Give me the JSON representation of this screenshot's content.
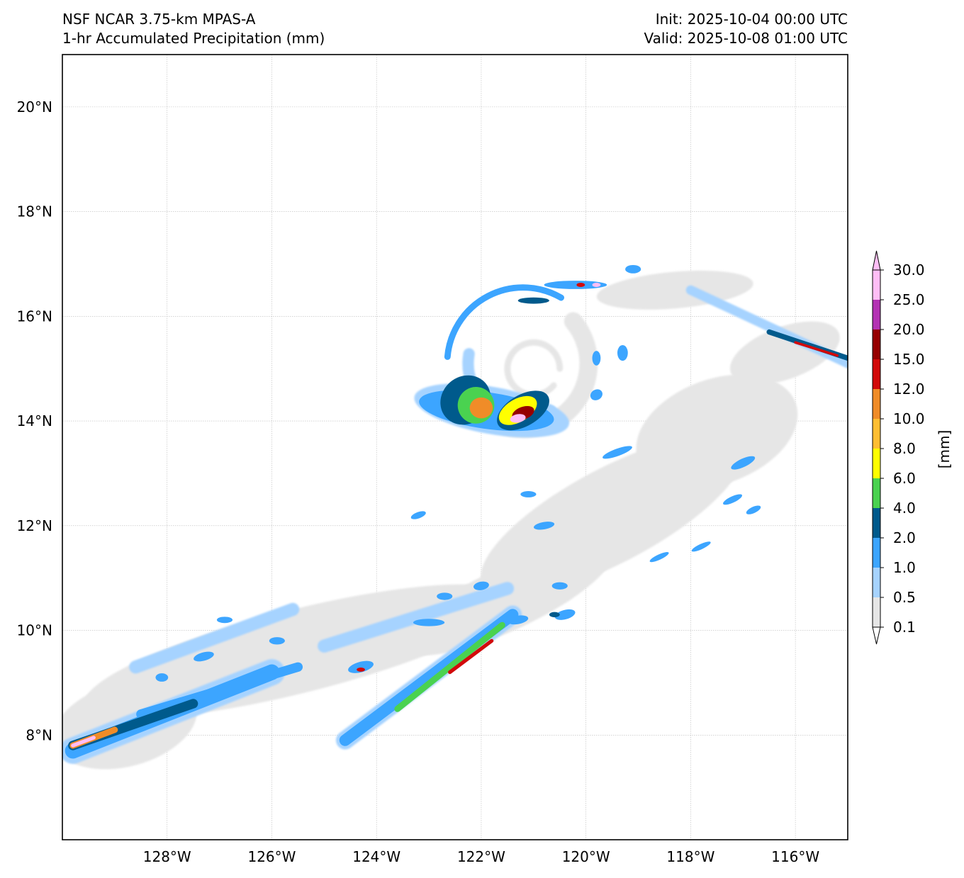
{
  "title": {
    "line1": "NSF NCAR 3.75-km MPAS-A",
    "line2": "1-hr Accumulated Precipitation (mm)",
    "init": "Init: 2025-10-04 00:00 UTC",
    "valid": "Valid: 2025-10-08 01:00 UTC"
  },
  "map": {
    "lon_range": [
      -130,
      -115
    ],
    "lat_range": [
      6,
      21
    ],
    "lat_ticks": [
      {
        "value": 20,
        "label": "20°N"
      },
      {
        "value": 18,
        "label": "18°N"
      },
      {
        "value": 16,
        "label": "16°N"
      },
      {
        "value": 14,
        "label": "14°N"
      },
      {
        "value": 12,
        "label": "12°N"
      },
      {
        "value": 10,
        "label": "10°N"
      },
      {
        "value": 8,
        "label": "8°N"
      }
    ],
    "lon_ticks": [
      {
        "value": -128,
        "label": "128°W"
      },
      {
        "value": -126,
        "label": "126°W"
      },
      {
        "value": -124,
        "label": "124°W"
      },
      {
        "value": -122,
        "label": "122°W"
      },
      {
        "value": -120,
        "label": "120°W"
      },
      {
        "value": -118,
        "label": "118°W"
      },
      {
        "value": -116,
        "label": "116°W"
      }
    ],
    "gridlines": true
  },
  "colorbar": {
    "label": "[mm]",
    "levels": [
      "0.1",
      "0.5",
      "1.0",
      "2.0",
      "4.0",
      "6.0",
      "8.0",
      "10.0",
      "12.0",
      "15.0",
      "20.0",
      "25.0",
      "30.0"
    ],
    "colors": [
      "#e6e6e6",
      "#a6d3ff",
      "#3ca5ff",
      "#005a8c",
      "#4ad250",
      "#ffff00",
      "#ffbe32",
      "#f08c28",
      "#d20a0a",
      "#960000",
      "#b432b4",
      "#ffbef5"
    ],
    "extend": "both"
  },
  "precip_features": [
    {
      "level": 0,
      "type": "blob",
      "lon": -119.5,
      "lat": 12.2,
      "rx": 2.8,
      "ry": 0.9,
      "rot": -28
    },
    {
      "level": 0,
      "type": "blob",
      "lon": -117.5,
      "lat": 13.8,
      "rx": 1.6,
      "ry": 1.0,
      "rot": -20
    },
    {
      "level": 0,
      "type": "blob",
      "lon": -121.5,
      "lat": 10.6,
      "rx": 2.2,
      "ry": 0.6,
      "rot": -25
    },
    {
      "level": 0,
      "type": "blob",
      "lon": -116.2,
      "lat": 15.3,
      "rx": 1.1,
      "ry": 0.5,
      "rot": -20
    },
    {
      "level": 0,
      "type": "blob",
      "lon": -125.5,
      "lat": 9.6,
      "rx": 4.2,
      "ry": 0.8,
      "rot": -14
    },
    {
      "level": 0,
      "type": "blob",
      "lon": -128.8,
      "lat": 8.2,
      "rx": 1.4,
      "ry": 0.8,
      "rot": -15
    },
    {
      "level": 0,
      "type": "blob",
      "lon": -118.3,
      "lat": 16.5,
      "rx": 1.5,
      "ry": 0.35,
      "rot": -5
    },
    {
      "level": 0,
      "type": "arc",
      "cx": -121.2,
      "cy": 15.1,
      "r": 1.25,
      "a0": 200,
      "a1": 400,
      "w": 0.35
    },
    {
      "level": 1,
      "type": "arc",
      "cx": -121.2,
      "cy": 15.1,
      "r": 1.05,
      "a0": 170,
      "a1": 300,
      "w": 0.22
    },
    {
      "level": 2,
      "type": "arc",
      "cx": -121.2,
      "cy": 15.1,
      "r": 1.45,
      "a0": 60,
      "a1": 175,
      "w": 0.12
    },
    {
      "level": 0,
      "type": "arc",
      "cx": -121.0,
      "cy": 15.0,
      "r": 0.5,
      "a0": 0,
      "a1": 320,
      "w": 0.12
    },
    {
      "level": 1,
      "type": "blob",
      "lon": -121.8,
      "lat": 14.2,
      "rx": 1.5,
      "ry": 0.45,
      "rot": 10
    },
    {
      "level": 2,
      "type": "blob",
      "lon": -121.9,
      "lat": 14.2,
      "rx": 1.3,
      "ry": 0.35,
      "rot": 8
    },
    {
      "level": 3,
      "type": "blob",
      "lon": -122.3,
      "lat": 14.4,
      "rx": 0.5,
      "ry": 0.45,
      "rot": -40
    },
    {
      "level": 3,
      "type": "blob",
      "lon": -121.2,
      "lat": 14.2,
      "rx": 0.55,
      "ry": 0.3,
      "rot": -30
    },
    {
      "level": 4,
      "type": "blob",
      "lon": -122.1,
      "lat": 14.3,
      "rx": 0.35,
      "ry": 0.35,
      "rot": -40
    },
    {
      "level": 5,
      "type": "blob",
      "lon": -121.3,
      "lat": 14.2,
      "rx": 0.4,
      "ry": 0.22,
      "rot": -30
    },
    {
      "level": 7,
      "type": "blob",
      "lon": -122.0,
      "lat": 14.25,
      "rx": 0.22,
      "ry": 0.2,
      "rot": 0
    },
    {
      "level": 9,
      "type": "blob",
      "lon": -121.2,
      "lat": 14.15,
      "rx": 0.22,
      "ry": 0.12,
      "rot": -20
    },
    {
      "level": 11,
      "type": "blob",
      "lon": -121.3,
      "lat": 14.05,
      "rx": 0.15,
      "ry": 0.08,
      "rot": -10
    },
    {
      "level": 1,
      "type": "band",
      "lon0": -129.8,
      "lat0": 7.7,
      "lon1": -126.0,
      "lat1": 9.2,
      "w": 0.5
    },
    {
      "level": 2,
      "type": "band",
      "lon0": -129.8,
      "lat0": 7.7,
      "lon1": -126.0,
      "lat1": 9.2,
      "w": 0.3
    },
    {
      "level": 3,
      "type": "band",
      "lon0": -129.8,
      "lat0": 7.8,
      "lon1": -127.5,
      "lat1": 8.6,
      "w": 0.18
    },
    {
      "level": 7,
      "type": "band",
      "lon0": -129.8,
      "lat0": 7.8,
      "lon1": -129.0,
      "lat1": 8.1,
      "w": 0.12
    },
    {
      "level": 11,
      "type": "band",
      "lon0": -129.8,
      "lat0": 7.8,
      "lon1": -129.4,
      "lat1": 7.95,
      "w": 0.07
    },
    {
      "level": 1,
      "type": "band",
      "lon0": -124.6,
      "lat0": 7.9,
      "lon1": -121.4,
      "lat1": 10.3,
      "w": 0.35
    },
    {
      "level": 2,
      "type": "band",
      "lon0": -124.6,
      "lat0": 7.9,
      "lon1": -121.4,
      "lat1": 10.3,
      "w": 0.22
    },
    {
      "level": 4,
      "type": "band",
      "lon0": -123.6,
      "lat0": 8.5,
      "lon1": -121.6,
      "lat1": 10.1,
      "w": 0.12
    },
    {
      "level": 8,
      "type": "band",
      "lon0": -122.6,
      "lat0": 9.2,
      "lon1": -121.8,
      "lat1": 9.8,
      "w": 0.07
    },
    {
      "level": 1,
      "type": "band",
      "lon0": -128.6,
      "lat0": 9.3,
      "lon1": -125.6,
      "lat1": 10.4,
      "w": 0.25
    },
    {
      "level": 1,
      "type": "band",
      "lon0": -125.0,
      "lat0": 9.7,
      "lon1": -121.5,
      "lat1": 10.8,
      "w": 0.25
    },
    {
      "level": 2,
      "type": "band",
      "lon0": -128.5,
      "lat0": 8.4,
      "lon1": -125.5,
      "lat1": 9.3,
      "w": 0.18
    },
    {
      "level": 1,
      "type": "band",
      "lon0": -118.0,
      "lat0": 16.5,
      "lon1": -115.0,
      "lat1": 15.1,
      "w": 0.18
    },
    {
      "level": 3,
      "type": "band",
      "lon0": -116.5,
      "lat0": 15.7,
      "lon1": -115.0,
      "lat1": 15.2,
      "w": 0.1
    },
    {
      "level": 8,
      "type": "band",
      "lon0": -116.0,
      "lat0": 15.5,
      "lon1": -115.2,
      "lat1": 15.25,
      "w": 0.05
    },
    {
      "level": 2,
      "type": "blob",
      "lon": -120.2,
      "lat": 16.6,
      "rx": 0.6,
      "ry": 0.08,
      "rot": 0
    },
    {
      "level": 3,
      "type": "blob",
      "lon": -121.0,
      "lat": 16.3,
      "rx": 0.3,
      "ry": 0.06,
      "rot": 0
    },
    {
      "level": 2,
      "type": "blob",
      "lon": -119.1,
      "lat": 16.9,
      "rx": 0.15,
      "ry": 0.08,
      "rot": 0
    },
    {
      "level": 2,
      "type": "blob",
      "lon": -119.3,
      "lat": 15.3,
      "rx": 0.1,
      "ry": 0.15,
      "rot": 0
    },
    {
      "level": 2,
      "type": "blob",
      "lon": -119.8,
      "lat": 15.2,
      "rx": 0.08,
      "ry": 0.14,
      "rot": 0
    },
    {
      "level": 2,
      "type": "blob",
      "lon": -119.8,
      "lat": 14.5,
      "rx": 0.12,
      "ry": 0.1,
      "rot": -30
    },
    {
      "level": 2,
      "type": "blob",
      "lon": -119.4,
      "lat": 13.4,
      "rx": 0.3,
      "ry": 0.07,
      "rot": -20
    },
    {
      "level": 2,
      "type": "blob",
      "lon": -117.0,
      "lat": 13.2,
      "rx": 0.25,
      "ry": 0.08,
      "rot": -25
    },
    {
      "level": 2,
      "type": "blob",
      "lon": -120.8,
      "lat": 12.0,
      "rx": 0.2,
      "ry": 0.07,
      "rot": -10
    },
    {
      "level": 2,
      "type": "blob",
      "lon": -121.1,
      "lat": 12.6,
      "rx": 0.15,
      "ry": 0.06,
      "rot": 0
    },
    {
      "level": 2,
      "type": "blob",
      "lon": -120.4,
      "lat": 10.3,
      "rx": 0.2,
      "ry": 0.09,
      "rot": -15
    },
    {
      "level": 2,
      "type": "blob",
      "lon": -121.3,
      "lat": 10.2,
      "rx": 0.2,
      "ry": 0.08,
      "rot": -10
    },
    {
      "level": 2,
      "type": "blob",
      "lon": -122.0,
      "lat": 10.85,
      "rx": 0.15,
      "ry": 0.08,
      "rot": -10
    },
    {
      "level": 2,
      "type": "blob",
      "lon": -122.7,
      "lat": 10.65,
      "rx": 0.15,
      "ry": 0.07,
      "rot": 0
    },
    {
      "level": 2,
      "type": "blob",
      "lon": -124.3,
      "lat": 9.3,
      "rx": 0.25,
      "ry": 0.1,
      "rot": -15
    },
    {
      "level": 2,
      "type": "blob",
      "lon": -125.9,
      "lat": 9.8,
      "rx": 0.15,
      "ry": 0.07,
      "rot": 0
    },
    {
      "level": 2,
      "type": "blob",
      "lon": -126.9,
      "lat": 10.2,
      "rx": 0.15,
      "ry": 0.06,
      "rot": 0
    },
    {
      "level": 2,
      "type": "blob",
      "lon": -127.3,
      "lat": 9.5,
      "rx": 0.2,
      "ry": 0.08,
      "rot": -15
    },
    {
      "level": 2,
      "type": "blob",
      "lon": -128.1,
      "lat": 9.1,
      "rx": 0.12,
      "ry": 0.08,
      "rot": 0
    },
    {
      "level": 2,
      "type": "blob",
      "lon": -123.2,
      "lat": 12.2,
      "rx": 0.15,
      "ry": 0.06,
      "rot": -20
    },
    {
      "level": 2,
      "type": "blob",
      "lon": -123.0,
      "lat": 10.15,
      "rx": 0.3,
      "ry": 0.07,
      "rot": 0
    },
    {
      "level": 2,
      "type": "blob",
      "lon": -120.5,
      "lat": 10.85,
      "rx": 0.15,
      "ry": 0.07,
      "rot": 0
    },
    {
      "level": 2,
      "type": "blob",
      "lon": -117.2,
      "lat": 12.5,
      "rx": 0.2,
      "ry": 0.06,
      "rot": -25
    },
    {
      "level": 2,
      "type": "blob",
      "lon": -116.8,
      "lat": 12.3,
      "rx": 0.15,
      "ry": 0.06,
      "rot": -25
    },
    {
      "level": 2,
      "type": "blob",
      "lon": -117.8,
      "lat": 11.6,
      "rx": 0.2,
      "ry": 0.05,
      "rot": -25
    },
    {
      "level": 2,
      "type": "blob",
      "lon": -118.6,
      "lat": 11.4,
      "rx": 0.2,
      "ry": 0.05,
      "rot": -25
    },
    {
      "level": 3,
      "type": "blob",
      "lon": -120.6,
      "lat": 10.3,
      "rx": 0.1,
      "ry": 0.05,
      "rot": 0
    },
    {
      "level": 8,
      "type": "blob",
      "lon": -124.3,
      "lat": 9.25,
      "rx": 0.08,
      "ry": 0.04,
      "rot": 0
    },
    {
      "level": 8,
      "type": "blob",
      "lon": -120.1,
      "lat": 16.6,
      "rx": 0.08,
      "ry": 0.04,
      "rot": 0
    },
    {
      "level": 11,
      "type": "blob",
      "lon": -119.8,
      "lat": 16.6,
      "rx": 0.08,
      "ry": 0.04,
      "rot": 0
    }
  ]
}
